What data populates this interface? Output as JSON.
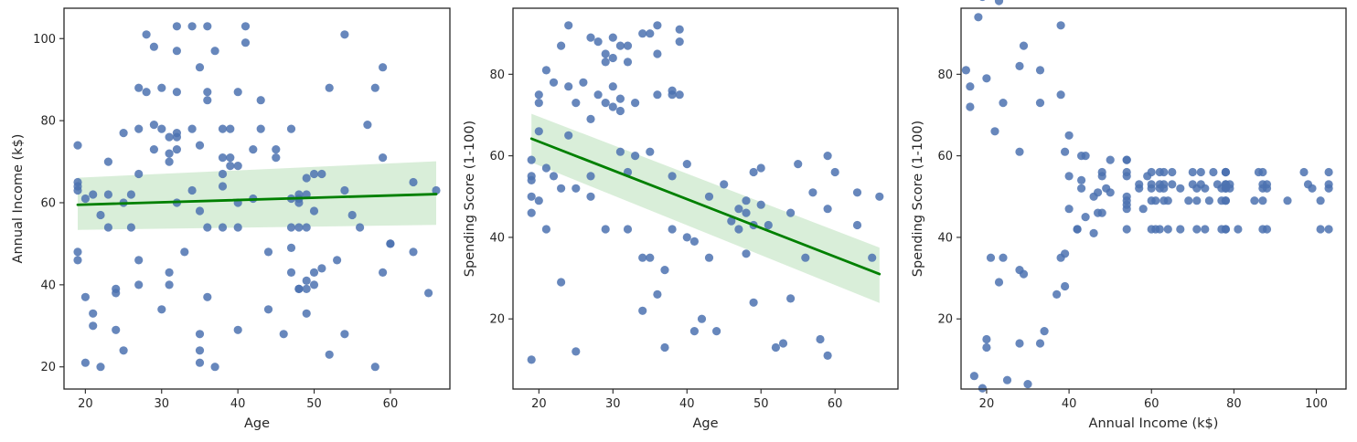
{
  "colors": {
    "points": "#4c72b0",
    "regression_line": "#008000",
    "confidence_band": "#bfe3bf",
    "axes": "#262626",
    "background": "#ffffff"
  },
  "chart_data": [
    {
      "type": "scatter",
      "xlabel": "Age",
      "ylabel": "Annual Income (k$)",
      "xlim": [
        17.2,
        67.8
      ],
      "ylim": [
        14.6,
        107.4
      ],
      "xticks": [
        20,
        30,
        40,
        50,
        60
      ],
      "yticks": [
        20,
        40,
        60,
        80,
        100
      ],
      "grid": false,
      "x": [
        19,
        19,
        19,
        19,
        19,
        19,
        20,
        20,
        20,
        21,
        21,
        21,
        22,
        22,
        23,
        23,
        23,
        24,
        24,
        24,
        25,
        25,
        25,
        26,
        26,
        27,
        27,
        27,
        27,
        27,
        28,
        28,
        29,
        29,
        29,
        30,
        30,
        30,
        31,
        31,
        31,
        31,
        31,
        32,
        32,
        32,
        32,
        32,
        32,
        32,
        33,
        34,
        34,
        34,
        35,
        35,
        35,
        35,
        35,
        35,
        36,
        36,
        36,
        36,
        36,
        37,
        37,
        38,
        38,
        38,
        38,
        38,
        39,
        39,
        39,
        40,
        40,
        40,
        40,
        40,
        41,
        41,
        42,
        42,
        43,
        43,
        44,
        44,
        45,
        45,
        46,
        47,
        47,
        47,
        47,
        47,
        48,
        48,
        48,
        48,
        48,
        48,
        49,
        49,
        49,
        49,
        49,
        49,
        50,
        50,
        50,
        50,
        51,
        51,
        52,
        52,
        53,
        54,
        54,
        54,
        55,
        56,
        57,
        58,
        58,
        59,
        59,
        59,
        60,
        60,
        63,
        63,
        65,
        66
      ],
      "y": [
        74,
        65,
        64,
        63,
        48,
        46,
        61,
        37,
        21,
        62,
        33,
        30,
        57,
        20,
        70,
        62,
        54,
        29,
        39,
        38,
        60,
        77,
        24,
        54,
        62,
        88,
        78,
        67,
        46,
        40,
        101,
        87,
        79,
        73,
        98,
        88,
        78,
        34,
        76,
        72,
        70,
        43,
        40,
        60,
        103,
        97,
        87,
        77,
        76,
        73,
        48,
        63,
        103,
        78,
        93,
        74,
        58,
        28,
        21,
        24,
        87,
        85,
        103,
        37,
        54,
        97,
        20,
        78,
        71,
        64,
        54,
        67,
        69,
        71,
        78,
        87,
        69,
        60,
        54,
        29,
        99,
        103,
        73,
        61,
        85,
        78,
        48,
        34,
        73,
        71,
        28,
        61,
        78,
        49,
        43,
        54,
        60,
        62,
        54,
        39,
        61,
        39,
        54,
        62,
        39,
        66,
        33,
        41,
        67,
        58,
        40,
        43,
        44,
        67,
        88,
        23,
        46,
        63,
        101,
        28,
        57,
        54,
        79,
        88,
        20,
        71,
        93,
        43,
        50,
        50,
        48,
        65,
        38,
        63
      ],
      "regression": {
        "x": [
          19,
          66
        ],
        "y": [
          59.5,
          62.1
        ],
        "ci_lower": [
          53.4,
          54.6
        ],
        "ci_upper": [
          66.1,
          70.1
        ]
      }
    },
    {
      "type": "scatter",
      "xlabel": "Age",
      "ylabel": "Spending Score (1-100)",
      "xlim": [
        16.5,
        68.5
      ],
      "ylim": [
        2.8,
        96.2
      ],
      "xticks": [
        20,
        30,
        40,
        50,
        60
      ],
      "yticks": [
        20,
        40,
        60,
        80
      ],
      "grid": false,
      "x": [
        19,
        19,
        19,
        19,
        19,
        19,
        20,
        20,
        20,
        20,
        21,
        21,
        21,
        22,
        22,
        23,
        23,
        23,
        24,
        24,
        24,
        25,
        25,
        25,
        26,
        27,
        27,
        27,
        27,
        28,
        28,
        29,
        29,
        29,
        29,
        30,
        30,
        30,
        30,
        31,
        31,
        31,
        31,
        32,
        32,
        32,
        32,
        33,
        33,
        34,
        34,
        34,
        35,
        35,
        35,
        36,
        36,
        36,
        36,
        37,
        37,
        38,
        38,
        38,
        38,
        39,
        39,
        39,
        40,
        40,
        41,
        41,
        42,
        43,
        43,
        44,
        45,
        46,
        47,
        47,
        48,
        48,
        48,
        49,
        49,
        49,
        50,
        50,
        51,
        52,
        53,
        54,
        54,
        55,
        56,
        57,
        58,
        59,
        59,
        59,
        60,
        63,
        63,
        65,
        66
      ],
      "y": [
        59,
        55,
        54,
        50,
        46,
        10,
        73,
        66,
        49,
        75,
        81,
        57,
        42,
        78,
        55,
        87,
        52,
        29,
        92,
        77,
        65,
        73,
        52,
        12,
        78,
        89,
        69,
        55,
        50,
        88,
        75,
        85,
        83,
        73,
        42,
        89,
        84,
        77,
        72,
        87,
        74,
        71,
        61,
        87,
        83,
        56,
        42,
        73,
        60,
        35,
        22,
        90,
        90,
        61,
        35,
        92,
        85,
        75,
        26,
        32,
        13,
        76,
        75,
        55,
        42,
        91,
        88,
        75,
        58,
        40,
        39,
        17,
        20,
        50,
        35,
        17,
        53,
        44,
        47,
        42,
        49,
        46,
        36,
        43,
        24,
        56,
        57,
        48,
        43,
        13,
        14,
        25,
        46,
        58,
        35,
        51,
        15,
        60,
        47,
        11,
        56,
        51,
        43,
        35,
        50
      ],
      "regression": {
        "x": [
          19,
          66
        ],
        "y": [
          64.2,
          31.0
        ],
        "ci_lower": [
          58.4,
          23.9
        ],
        "ci_upper": [
          70.3,
          37.5
        ]
      }
    },
    {
      "type": "scatter",
      "xlabel": "Annual Income (k$)",
      "ylabel": "Spending Score (1-100)",
      "xlim": [
        13.8,
        107.2
      ],
      "ylim": [
        2.8,
        96.2
      ],
      "xticks": [
        20,
        40,
        60,
        80,
        100
      ],
      "yticks": [
        20,
        40,
        60,
        80
      ],
      "grid": false,
      "x": [
        15,
        16,
        16,
        17,
        18,
        19,
        19,
        20,
        20,
        20,
        21,
        22,
        23,
        23,
        24,
        24,
        25,
        28,
        28,
        28,
        28,
        29,
        29,
        30,
        33,
        33,
        33,
        34,
        37,
        38,
        38,
        38,
        39,
        39,
        39,
        40,
        40,
        40,
        42,
        42,
        43,
        43,
        43,
        44,
        44,
        46,
        46,
        47,
        47,
        48,
        48,
        48,
        49,
        50,
        50,
        54,
        54,
        54,
        54,
        54,
        54,
        54,
        54,
        54,
        57,
        57,
        58,
        59,
        60,
        60,
        60,
        60,
        60,
        61,
        61,
        62,
        62,
        62,
        62,
        63,
        63,
        63,
        63,
        64,
        64,
        65,
        65,
        67,
        67,
        69,
        70,
        70,
        71,
        71,
        71,
        72,
        72,
        73,
        73,
        74,
        75,
        76,
        77,
        77,
        77,
        78,
        78,
        78,
        78,
        78,
        78,
        78,
        78,
        78,
        78,
        78,
        79,
        79,
        81,
        85,
        86,
        87,
        87,
        87,
        87,
        87,
        88,
        88,
        88,
        93,
        97,
        98,
        99,
        101,
        101,
        103,
        103,
        103,
        103
      ],
      "y": [
        81,
        72,
        77,
        6,
        94,
        3,
        99,
        15,
        13,
        79,
        35,
        66,
        29,
        98,
        35,
        73,
        5,
        14,
        82,
        32,
        61,
        31,
        87,
        4,
        73,
        14,
        81,
        17,
        26,
        75,
        35,
        92,
        36,
        61,
        28,
        65,
        55,
        47,
        42,
        42,
        52,
        60,
        54,
        60,
        45,
        41,
        50,
        46,
        51,
        46,
        56,
        55,
        52,
        59,
        51,
        59,
        50,
        48,
        59,
        47,
        55,
        42,
        49,
        56,
        53,
        52,
        47,
        55,
        42,
        49,
        56,
        53,
        52,
        42,
        49,
        56,
        53,
        52,
        42,
        49,
        56,
        53,
        52,
        42,
        49,
        56,
        53,
        52,
        42,
        49,
        56,
        53,
        52,
        42,
        49,
        56,
        53,
        52,
        42,
        49,
        56,
        53,
        52,
        42,
        49,
        56,
        53,
        52,
        42,
        49,
        56,
        53,
        52,
        42,
        49,
        56,
        53,
        52,
        42,
        49,
        56,
        53,
        52,
        42,
        49,
        56,
        53,
        52,
        42,
        49,
        56,
        53,
        52,
        42,
        49,
        56,
        53,
        52,
        42
      ]
    }
  ]
}
